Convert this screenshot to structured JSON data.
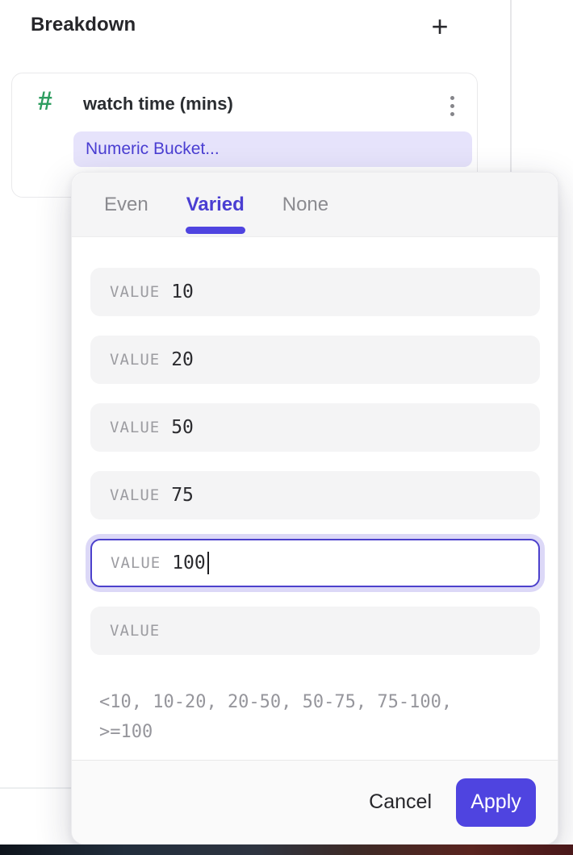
{
  "panel": {
    "title": "Breakdown",
    "add_button": "+"
  },
  "breakdown_card": {
    "type_icon": "#",
    "property_name": "watch time (mins)",
    "bucketing_label": "Numeric Bucket..."
  },
  "bucket_popover": {
    "tabs": [
      {
        "label": "Even",
        "active": false
      },
      {
        "label": "Varied",
        "active": true
      },
      {
        "label": "None",
        "active": false
      }
    ],
    "value_rows": [
      {
        "label": "VALUE",
        "value": "10",
        "focused": false
      },
      {
        "label": "VALUE",
        "value": "20",
        "focused": false
      },
      {
        "label": "VALUE",
        "value": "50",
        "focused": false
      },
      {
        "label": "VALUE",
        "value": "75",
        "focused": false
      },
      {
        "label": "VALUE",
        "value": "100",
        "focused": true
      },
      {
        "label": "VALUE",
        "value": "",
        "focused": false
      }
    ],
    "preview": {
      "line1": "<10, 10-20, 20-50, 50-75, 75-100,",
      "line2": ">=100"
    },
    "footer": {
      "cancel": "Cancel",
      "apply": "Apply"
    }
  },
  "colors": {
    "accent": "#4f44e0",
    "accent_text": "#4a3ed2",
    "pill_bg": "#e6e3fb",
    "focus_ring": "#dcd8f7",
    "numeric_property_green": "#2d9d5f"
  }
}
